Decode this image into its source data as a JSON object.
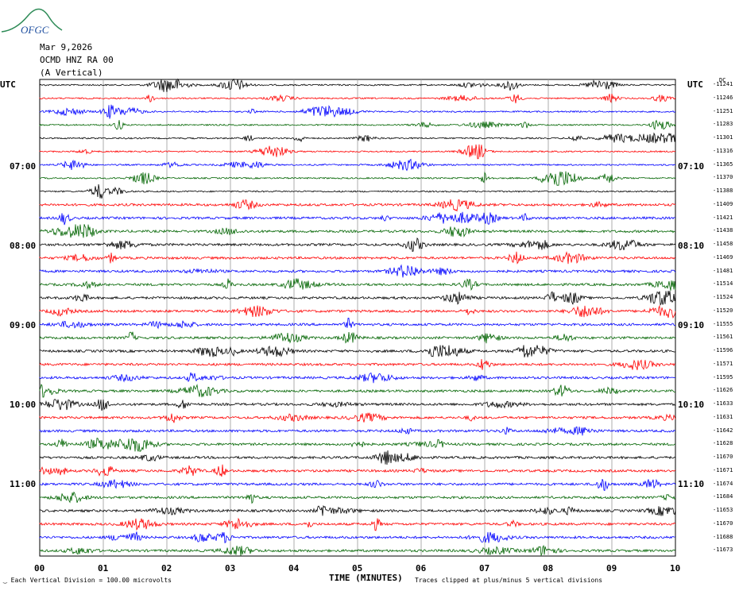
{
  "logo": {
    "text": "OFGC"
  },
  "header": {
    "date": "Mar 9,2026",
    "channel": "OCMD HNZ RA 00",
    "component": "(A Vertical)"
  },
  "utc_left": "UTC",
  "utc_right": "UTC",
  "dc_label": "DC",
  "left_times": [
    "07:00",
    "08:00",
    "09:00",
    "10:00",
    "11:00"
  ],
  "right_times": [
    "07:10",
    "08:10",
    "09:10",
    "10:10",
    "11:10"
  ],
  "trace_colors": [
    "#000000",
    "#ff0000",
    "#0000ff",
    "#006400"
  ],
  "dc_offsets": [
    "-11241",
    "-11246",
    "-11251",
    "-11283",
    "-11301",
    "-11316",
    "-11365",
    "-11370",
    "-11388",
    "-11409",
    "-11421",
    "-11438",
    "-11458",
    "-11469",
    "-11481",
    "-11514",
    "-11524",
    "-11520",
    "-11555",
    "-11561",
    "-11596",
    "-11571",
    "-11595",
    "-11626",
    "-11633",
    "-11631",
    "-11642",
    "-11628",
    "-11670",
    "-11671",
    "-11674",
    "-11684",
    "-11653",
    "-11670",
    "-11688",
    "-11673"
  ],
  "x_ticks": [
    "00",
    "01",
    "02",
    "03",
    "04",
    "05",
    "06",
    "07",
    "08",
    "09",
    "10"
  ],
  "xlabel": "TIME (MINUTES)",
  "footer": {
    "scale": "Each Vertical Division =  100.00 microvolts",
    "clip": "Traces clipped at plus/minus 5 vertical divisions"
  }
}
